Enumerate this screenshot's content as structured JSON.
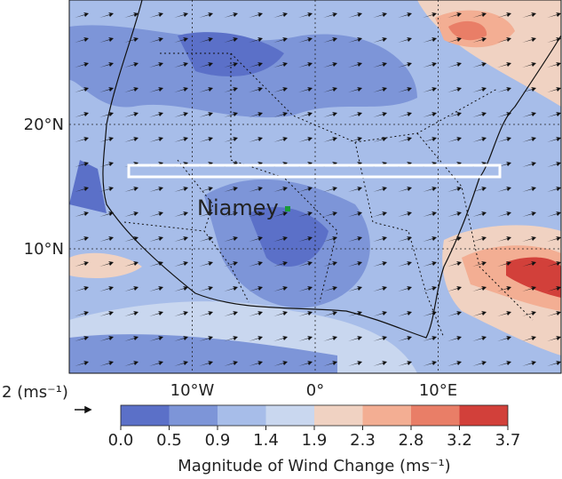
{
  "map": {
    "xlim": [
      -20,
      20
    ],
    "ylim": [
      0,
      30
    ],
    "xticks": [
      {
        "value": -10,
        "label": "10°W"
      },
      {
        "value": 0,
        "label": "0°"
      },
      {
        "value": 10,
        "label": "10°E"
      }
    ],
    "yticks": [
      {
        "value": 10,
        "label": "10°N"
      },
      {
        "value": 20,
        "label": "20°N"
      }
    ],
    "grid": true,
    "city": "Niamey",
    "reference_vector": "2 (ms⁻¹)",
    "colorbar": {
      "label": "Magnitude of Wind Change (ms⁻¹)",
      "ticks": [
        {
          "value": 0,
          "label": "0.0"
        },
        0.5,
        0.9,
        1.4,
        1.9,
        2.3,
        2.8,
        3.2,
        3.7
      ],
      "colors": [
        "#5b70c8",
        "#7d95d8",
        "#a7bde9",
        "#c9d7ef",
        "#f0d2c2",
        "#f3ae93",
        "#e97e67",
        "#d2403a"
      ]
    }
  }
}
